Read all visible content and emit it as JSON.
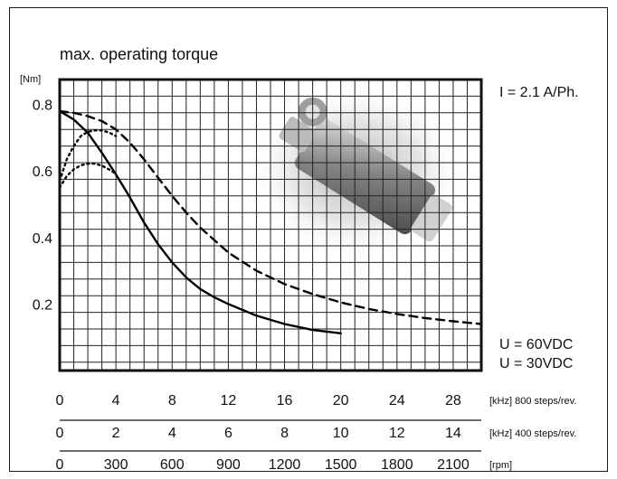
{
  "chart_data": {
    "type": "line",
    "title": "max. operating torque",
    "ylabel": "[Nm]",
    "annotation": "I = 2.1 A/Ph.",
    "ylim": [
      0,
      0.875
    ],
    "xlim": [
      0,
      30
    ],
    "yticks": [
      0.2,
      0.4,
      0.6,
      0.8
    ],
    "yticklabels": [
      "0.2",
      "0.4",
      "0.6",
      "0.8"
    ],
    "grid": true,
    "x_axes": [
      {
        "unit": "[kHz] 800 steps/rev.",
        "ticks": [
          0,
          4,
          8,
          12,
          16,
          20,
          24,
          28
        ],
        "labels": [
          "0",
          "4",
          "8",
          "12",
          "16",
          "20",
          "24",
          "28"
        ]
      },
      {
        "unit": "[kHz] 400 steps/rev.",
        "ticks": [
          0,
          4,
          8,
          12,
          16,
          20,
          24,
          28
        ],
        "labels": [
          "0",
          "2",
          "4",
          "6",
          "8",
          "10",
          "12",
          "14"
        ]
      },
      {
        "unit": "[rpm]",
        "ticks": [
          0,
          4,
          8,
          12,
          16,
          20,
          24,
          28
        ],
        "labels": [
          "0",
          "300",
          "600",
          "900",
          "1200",
          "1500",
          "1800",
          "2100"
        ]
      }
    ],
    "legend": [
      "U = 60VDC",
      "U = 30VDC"
    ],
    "series": [
      {
        "style": "dashed",
        "x": [
          0,
          1,
          2,
          3,
          4,
          5,
          6,
          7,
          8,
          9,
          10,
          12,
          14,
          16,
          18,
          20,
          22,
          24,
          26,
          28,
          30
        ],
        "y": [
          0.78,
          0.775,
          0.765,
          0.75,
          0.725,
          0.685,
          0.635,
          0.58,
          0.525,
          0.475,
          0.43,
          0.355,
          0.3,
          0.26,
          0.23,
          0.205,
          0.185,
          0.17,
          0.158,
          0.148,
          0.14
        ]
      },
      {
        "style": "solid",
        "x": [
          0,
          1,
          2,
          3,
          4,
          5,
          6,
          7,
          8,
          9,
          10,
          11,
          12,
          14,
          16,
          18,
          20
        ],
        "y": [
          0.78,
          0.755,
          0.715,
          0.655,
          0.59,
          0.52,
          0.445,
          0.38,
          0.325,
          0.28,
          0.245,
          0.22,
          0.2,
          0.165,
          0.14,
          0.122,
          0.112
        ]
      },
      {
        "style": "dotted",
        "x": [
          0,
          0.5,
          1,
          1.5,
          2,
          2.5,
          3,
          3.5,
          4
        ],
        "y": [
          0.57,
          0.635,
          0.675,
          0.705,
          0.718,
          0.722,
          0.722,
          0.716,
          0.705
        ]
      },
      {
        "style": "dotted",
        "x": [
          0,
          0.5,
          1,
          1.5,
          2,
          2.5,
          3,
          3.5,
          4
        ],
        "y": [
          0.55,
          0.585,
          0.605,
          0.617,
          0.622,
          0.622,
          0.616,
          0.605,
          0.592
        ]
      }
    ]
  }
}
